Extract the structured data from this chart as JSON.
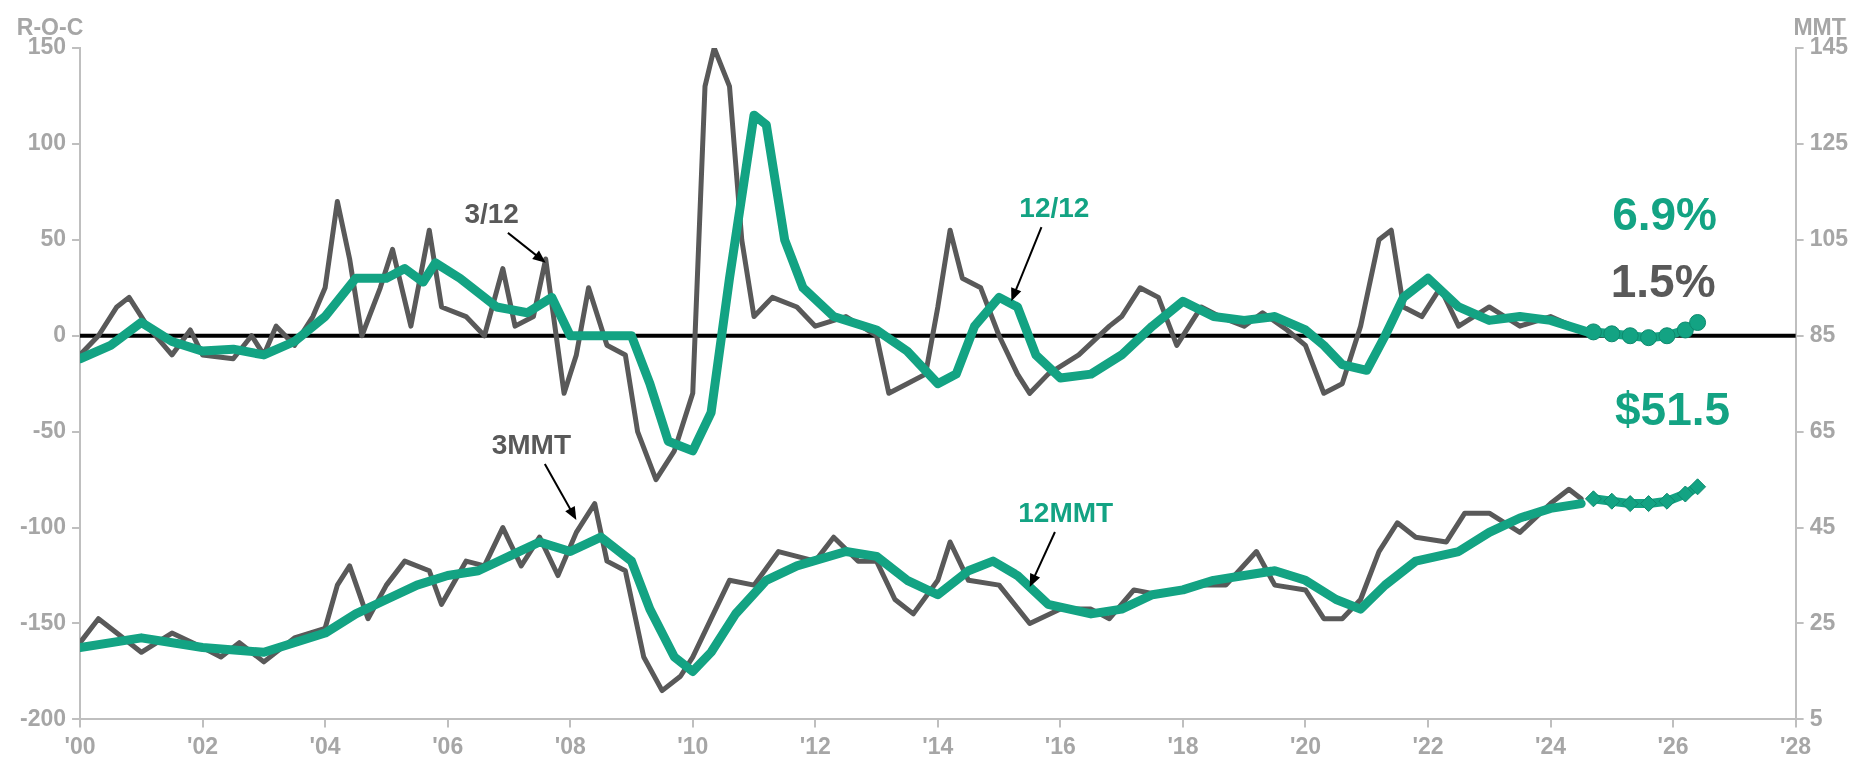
{
  "chart_data": {
    "type": "line",
    "ylabel": "R-O-C",
    "y2label": "MMT",
    "xlim": [
      2000,
      2028
    ],
    "xticks": [
      {
        "value": 2000,
        "label": "'00"
      },
      {
        "value": 2002,
        "label": "'02"
      },
      {
        "value": 2004,
        "label": "'04"
      },
      {
        "value": 2006,
        "label": "'06"
      },
      {
        "value": 2008,
        "label": "'08"
      },
      {
        "value": 2010,
        "label": "'10"
      },
      {
        "value": 2012,
        "label": "'12"
      },
      {
        "value": 2014,
        "label": "'14"
      },
      {
        "value": 2016,
        "label": "'16"
      },
      {
        "value": 2018,
        "label": "'18"
      },
      {
        "value": 2020,
        "label": "'20"
      },
      {
        "value": 2022,
        "label": "'22"
      },
      {
        "value": 2024,
        "label": "'24"
      },
      {
        "value": 2026,
        "label": "'26"
      },
      {
        "value": 2028,
        "label": "'28"
      }
    ],
    "ylim": [
      -200,
      150
    ],
    "yticks": [
      -200,
      -150,
      -100,
      -50,
      0,
      50,
      100,
      150
    ],
    "y2lim": [
      5,
      145
    ],
    "y2ticks": [
      5,
      25,
      45,
      65,
      85,
      105,
      125,
      145
    ],
    "grid": false,
    "legend": false,
    "marker": "none",
    "line_style": "solid",
    "series": [
      {
        "color": "#595959",
        "axis": "y",
        "x": [
          2000,
          2000.3,
          2000.6,
          2000.8,
          2001.1,
          2001.5,
          2001.8,
          2002,
          2002.5,
          2002.8,
          2003,
          2003.2,
          2003.5,
          2003.8,
          2004,
          2004.2,
          2004.4,
          2004.6,
          2004.9,
          2005.1,
          2005.4,
          2005.7,
          2005.9,
          2006.3,
          2006.6,
          2006.9,
          2007.1,
          2007.4,
          2007.6,
          2007.9,
          2008.1,
          2008.3,
          2008.6,
          2008.9,
          2009.1,
          2009.4,
          2009.7,
          2010,
          2010.2,
          2010.35,
          2010.6,
          2010.8,
          2011,
          2011.3,
          2011.7,
          2012,
          2012.5,
          2013,
          2013.2,
          2013.5,
          2013.8,
          2014,
          2014.2,
          2014.4,
          2014.7,
          2015,
          2015.3,
          2015.5,
          2015.8,
          2016.3,
          2016.8,
          2017,
          2017.3,
          2017.6,
          2017.9,
          2018.3,
          2018.6,
          2019,
          2019.3,
          2019.7,
          2020,
          2020.3,
          2020.6,
          2020.9,
          2021.2,
          2021.4,
          2021.6,
          2021.9,
          2022.2,
          2022.5,
          2023,
          2023.5,
          2024,
          2024.5
        ],
        "values": [
          -10,
          0,
          15,
          20,
          5,
          -10,
          3,
          -10,
          -12,
          0,
          -10,
          5,
          -5,
          10,
          25,
          70,
          40,
          0,
          25,
          45,
          5,
          55,
          15,
          10,
          0,
          35,
          5,
          10,
          40,
          -30,
          -10,
          25,
          -5,
          -10,
          -50,
          -75,
          -60,
          -30,
          130,
          150,
          130,
          50,
          10,
          20,
          15,
          5,
          10,
          0,
          -30,
          -25,
          -20,
          15,
          55,
          30,
          25,
          0,
          -20,
          -30,
          -20,
          -10,
          5,
          10,
          25,
          20,
          -5,
          15,
          10,
          5,
          12,
          3,
          -5,
          -30,
          -25,
          5,
          50,
          55,
          15,
          10,
          25,
          5,
          15,
          5,
          10,
          3
        ]
      },
      {
        "color": "#13a383",
        "axis": "y",
        "x": [
          2000,
          2000.5,
          2001,
          2001.5,
          2002,
          2002.5,
          2003,
          2003.5,
          2004,
          2004.5,
          2005,
          2005.3,
          2005.6,
          2005.8,
          2006.2,
          2006.8,
          2007.3,
          2007.7,
          2008,
          2008.5,
          2009,
          2009.3,
          2009.6,
          2010,
          2010.3,
          2010.6,
          2011,
          2011.2,
          2011.5,
          2011.8,
          2012.3,
          2013,
          2013.5,
          2014,
          2014.3,
          2014.6,
          2015,
          2015.3,
          2015.6,
          2016,
          2016.5,
          2017,
          2017.5,
          2018,
          2018.5,
          2019,
          2019.5,
          2020,
          2020.3,
          2020.6,
          2021,
          2021.3,
          2021.6,
          2022,
          2022.5,
          2023,
          2023.5,
          2024,
          2024.6
        ],
        "values": [
          -12,
          -5,
          7,
          -3,
          -8,
          -7,
          -10,
          -3,
          10,
          30,
          30,
          35,
          28,
          38,
          30,
          15,
          12,
          20,
          0,
          0,
          0,
          -25,
          -55,
          -60,
          -40,
          30,
          115,
          110,
          50,
          25,
          10,
          3,
          -8,
          -25,
          -20,
          5,
          20,
          15,
          -10,
          -22,
          -20,
          -10,
          5,
          18,
          10,
          8,
          10,
          3,
          -5,
          -15,
          -18,
          0,
          20,
          30,
          15,
          8,
          10,
          8,
          2
        ]
      },
      {
        "color": "#13a383",
        "axis": "y",
        "marker": "circle",
        "x": [
          2024.7,
          2025,
          2025.3,
          2025.6,
          2025.9,
          2026.2,
          2026.4
        ],
        "values": [
          2,
          1,
          0,
          -1,
          0,
          3,
          6.9
        ]
      },
      {
        "color": "#595959",
        "axis": "y2",
        "x": [
          2000,
          2000.3,
          2000.6,
          2001,
          2001.5,
          2002,
          2002.3,
          2002.6,
          2003,
          2003.5,
          2004,
          2004.2,
          2004.4,
          2004.7,
          2005,
          2005.3,
          2005.7,
          2005.9,
          2006.3,
          2006.6,
          2006.9,
          2007.2,
          2007.5,
          2007.8,
          2008.1,
          2008.4,
          2008.6,
          2008.9,
          2009.2,
          2009.5,
          2009.8,
          2010,
          2010.3,
          2010.6,
          2011,
          2011.4,
          2012,
          2012.3,
          2012.7,
          2013,
          2013.3,
          2013.6,
          2014,
          2014.2,
          2014.5,
          2015,
          2015.5,
          2016,
          2016.5,
          2016.8,
          2017.2,
          2017.6,
          2018,
          2018.3,
          2018.7,
          2019.2,
          2019.5,
          2020,
          2020.3,
          2020.6,
          2020.9,
          2021.2,
          2021.5,
          2021.8,
          2022.3,
          2022.6,
          2023,
          2023.5,
          2024,
          2024.3,
          2024.5
        ],
        "values": [
          21,
          26,
          23,
          19,
          23,
          20,
          18,
          21,
          17,
          22,
          24,
          33,
          37,
          26,
          33,
          38,
          36,
          29,
          38,
          37,
          45,
          37,
          43,
          35,
          44,
          50,
          38,
          36,
          18,
          11,
          14,
          18,
          26,
          34,
          33,
          40,
          38,
          43,
          38,
          38,
          30,
          27,
          34,
          42,
          34,
          33,
          25,
          28,
          28,
          26,
          32,
          31,
          32,
          33,
          33,
          40,
          33,
          32,
          26,
          26,
          30,
          40,
          46,
          43,
          42,
          48,
          48,
          44,
          50,
          53,
          51
        ]
      },
      {
        "color": "#13a383",
        "axis": "y2",
        "x": [
          2000,
          2001,
          2002,
          2003,
          2004,
          2004.5,
          2005,
          2005.5,
          2006,
          2006.5,
          2007,
          2007.5,
          2008,
          2008.5,
          2009,
          2009.3,
          2009.7,
          2010,
          2010.3,
          2010.7,
          2011.2,
          2011.7,
          2012.5,
          2013,
          2013.5,
          2014,
          2014.5,
          2014.9,
          2015.3,
          2015.8,
          2016.5,
          2017,
          2017.5,
          2018,
          2018.5,
          2019,
          2019.5,
          2020,
          2020.5,
          2020.9,
          2021.3,
          2021.8,
          2022.5,
          2023,
          2023.5,
          2024,
          2024.5
        ],
        "values": [
          20,
          22,
          20,
          19,
          23,
          27,
          30,
          33,
          35,
          36,
          39,
          42,
          40,
          43,
          38,
          28,
          18,
          15,
          19,
          27,
          34,
          37,
          40,
          39,
          34,
          31,
          36,
          38,
          35,
          29,
          27,
          28,
          31,
          32,
          34,
          35,
          36,
          34,
          30,
          28,
          33,
          38,
          40,
          44,
          47,
          49,
          50
        ]
      },
      {
        "color": "#13a383",
        "axis": "y2",
        "marker": "diamond",
        "x": [
          2024.7,
          2025,
          2025.3,
          2025.6,
          2025.9,
          2026.2,
          2026.4
        ],
        "values": [
          51,
          50.5,
          50,
          50,
          50.5,
          52,
          53.5
        ]
      }
    ],
    "ref_lines": [
      {
        "axis": "y",
        "value": 0,
        "color": "#000000",
        "line_style": "solid"
      }
    ],
    "annotations": [
      {
        "text": "3/12",
        "x": 2007.6,
        "y": 38
      },
      {
        "text": "12/12",
        "x": 2015.2,
        "y": 18
      },
      {
        "text": "3MMT",
        "x": 2008.1,
        "y": -96
      },
      {
        "text": "12MMT",
        "x": 2015.5,
        "y": -131
      },
      {
        "text": "6.9%",
        "x": 2026.4,
        "y": 6.9
      },
      {
        "text": "1.5%",
        "x": 2024.5,
        "y": 3
      },
      {
        "text": "$51.5",
        "x": 2026.4,
        "y": -76
      }
    ]
  }
}
